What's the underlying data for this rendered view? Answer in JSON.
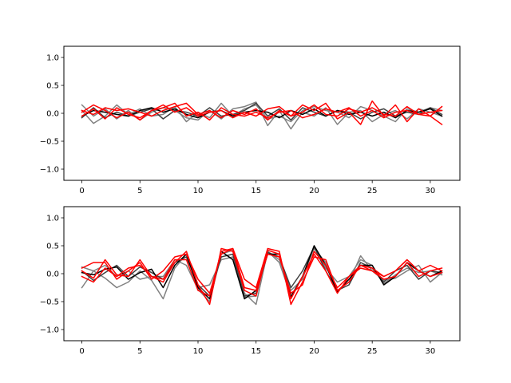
{
  "chart_data": [
    {
      "type": "line",
      "xlim": [
        -1.55,
        32.55
      ],
      "ylim": [
        -1.2,
        1.2
      ],
      "x": [
        0,
        1,
        2,
        3,
        4,
        5,
        6,
        7,
        8,
        9,
        10,
        11,
        12,
        13,
        14,
        15,
        16,
        17,
        18,
        19,
        20,
        21,
        22,
        23,
        24,
        25,
        26,
        27,
        28,
        29,
        30,
        31
      ],
      "xticks": [
        "0",
        "5",
        "10",
        "15",
        "20",
        "25",
        "30"
      ],
      "xtick_values": [
        0,
        5,
        10,
        15,
        20,
        25,
        30
      ],
      "yticks": [
        "−1.0",
        "−0.5",
        "0.0",
        "0.5",
        "1.0"
      ],
      "ytick_values": [
        -1.0,
        -0.5,
        0.0,
        0.5,
        1.0
      ],
      "grid": false,
      "series": [
        {
          "color": "#808080",
          "values": [
            0.15,
            -0.05,
            0.08,
            -0.1,
            0.05,
            -0.12,
            0.02,
            0.1,
            0.05,
            -0.08,
            -0.12,
            0.05,
            -0.1,
            0.08,
            0.12,
            0.2,
            -0.22,
            0.05,
            -0.28,
            0.02,
            -0.05,
            0.1,
            -0.2,
            0.02,
            0.05,
            -0.15,
            -0.02,
            0.05,
            -0.1,
            0.08,
            0.02,
            -0.05
          ]
        },
        {
          "color": "#808080",
          "values": [
            0.05,
            -0.18,
            -0.05,
            0.15,
            -0.02,
            0.08,
            -0.05,
            -0.02,
            0.12,
            -0.15,
            0.02,
            -0.08,
            0.18,
            -0.05,
            0.08,
            0.15,
            -0.1,
            -0.05,
            -0.15,
            0.05,
            0.12,
            0.05,
            0.02,
            -0.08,
            0.12,
            0.05,
            -0.05,
            -0.15,
            0.08,
            0.02,
            0.1,
            0.05
          ]
        },
        {
          "color": "#404040",
          "values": [
            -0.08,
            0.1,
            -0.08,
            0.02,
            -0.05,
            0.02,
            0.08,
            -0.1,
            0.05,
            0.02,
            -0.05,
            0.1,
            -0.05,
            -0.02,
            0.05,
            0.18,
            -0.05,
            0.08,
            -0.12,
            0.1,
            0.02,
            -0.05,
            0.05,
            0.02,
            -0.1,
            0.02,
            0.08,
            -0.05,
            0.02,
            -0.02,
            0.1,
            -0.02
          ]
        },
        {
          "color": "#000000",
          "values": [
            -0.05,
            0.05,
            0.02,
            -0.02,
            -0.05,
            0.05,
            0.1,
            0.02,
            0.08,
            -0.02,
            -0.08,
            0.02,
            0.05,
            -0.05,
            0.02,
            0.05,
            0.02,
            -0.08,
            0.05,
            -0.02,
            0.08,
            -0.05,
            0.05,
            -0.02,
            0.02,
            -0.05,
            0.02,
            -0.08,
            0.05,
            0.02,
            0.08,
            -0.05
          ]
        },
        {
          "color": "#ff0000",
          "values": [
            0.02,
            0.15,
            0.05,
            -0.08,
            0.02,
            -0.12,
            0.05,
            0.15,
            0.02,
            0.1,
            -0.05,
            0.02,
            0.05,
            -0.08,
            0.02,
            -0.05,
            0.08,
            0.12,
            -0.05,
            0.15,
            0.05,
            0.18,
            -0.1,
            0.02,
            -0.2,
            0.22,
            -0.05,
            0.15,
            -0.15,
            0.08,
            -0.05,
            0.12
          ]
        },
        {
          "color": "#ff0000",
          "values": [
            -0.05,
            0.08,
            -0.1,
            0.1,
            -0.02,
            -0.08,
            0.05,
            0.1,
            0.18,
            -0.05,
            0.02,
            -0.12,
            0.1,
            -0.02,
            -0.05,
            0.02,
            -0.08,
            0.02,
            0.05,
            -0.08,
            -0.02,
            0.08,
            0.02,
            0.1,
            -0.05,
            0.05,
            -0.08,
            0.02,
            0.05,
            -0.02,
            -0.05,
            -0.2
          ]
        },
        {
          "color": "#ff0000",
          "values": [
            0.05,
            -0.02,
            0.1,
            0.05,
            0.08,
            0.02,
            -0.05,
            0.05,
            0.12,
            0.18,
            -0.02,
            0.05,
            -0.08,
            0.05,
            -0.02,
            0.08,
            -0.12,
            0.05,
            -0.05,
            0.02,
            0.15,
            -0.02,
            -0.05,
            0.08,
            0.02,
            0.1,
            -0.02,
            -0.05,
            0.12,
            -0.02,
            0.02,
            0.05
          ]
        }
      ]
    },
    {
      "type": "line",
      "xlim": [
        -1.55,
        32.55
      ],
      "ylim": [
        -1.2,
        1.2
      ],
      "x": [
        0,
        1,
        2,
        3,
        4,
        5,
        6,
        7,
        8,
        9,
        10,
        11,
        12,
        13,
        14,
        15,
        16,
        17,
        18,
        19,
        20,
        21,
        22,
        23,
        24,
        25,
        26,
        27,
        28,
        29,
        30,
        31
      ],
      "xticks": [
        "0",
        "5",
        "10",
        "15",
        "20",
        "25",
        "30"
      ],
      "xtick_values": [
        0,
        5,
        10,
        15,
        20,
        25,
        30
      ],
      "yticks": [
        "−1.0",
        "−0.5",
        "0.0",
        "0.5",
        "1.0"
      ],
      "ytick_values": [
        -1.0,
        -0.5,
        0.0,
        0.5,
        1.0
      ],
      "grid": false,
      "series": [
        {
          "color": "#808080",
          "values": [
            -0.25,
            0.05,
            -0.08,
            -0.25,
            -0.15,
            0.05,
            -0.12,
            -0.45,
            0.1,
            0.35,
            -0.25,
            -0.2,
            0.25,
            0.3,
            -0.35,
            -0.55,
            0.4,
            0.2,
            -0.4,
            -0.05,
            0.45,
            0.2,
            -0.3,
            -0.15,
            0.32,
            0.05,
            -0.12,
            -0.08,
            0.05,
            0.15,
            -0.15,
            0.02
          ]
        },
        {
          "color": "#808080",
          "values": [
            0.12,
            0.05,
            0.15,
            -0.05,
            0.05,
            -0.1,
            -0.05,
            -0.05,
            0.25,
            0.15,
            -0.28,
            -0.5,
            0.35,
            0.42,
            -0.42,
            -0.4,
            0.4,
            0.25,
            -0.3,
            -0.1,
            0.5,
            0.1,
            -0.15,
            -0.05,
            0.25,
            0.15,
            -0.18,
            -0.02,
            0.1,
            0.02,
            0.05,
            -0.02
          ]
        },
        {
          "color": "#404040",
          "values": [
            0.05,
            -0.12,
            0.02,
            0.15,
            -0.05,
            0.12,
            0.02,
            -0.1,
            0.2,
            0.3,
            -0.2,
            -0.4,
            0.3,
            0.35,
            -0.4,
            -0.35,
            0.38,
            0.3,
            -0.25,
            0.05,
            0.48,
            0.05,
            -0.3,
            -0.2,
            0.2,
            0.1,
            -0.15,
            0.05,
            0.15,
            -0.1,
            0.05,
            0.02
          ]
        },
        {
          "color": "#000000",
          "values": [
            0.02,
            -0.02,
            0.08,
            0.12,
            -0.1,
            0.02,
            0.08,
            -0.25,
            0.15,
            0.35,
            -0.25,
            -0.45,
            0.4,
            0.25,
            -0.45,
            -0.3,
            0.35,
            0.35,
            -0.42,
            -0.05,
            0.5,
            0.15,
            -0.32,
            -0.1,
            0.15,
            0.15,
            -0.2,
            -0.05,
            0.2,
            0.05,
            -0.05,
            0.05
          ]
        },
        {
          "color": "#ff0000",
          "values": [
            0.1,
            0.2,
            0.2,
            -0.1,
            0.05,
            0.2,
            -0.1,
            0.05,
            0.3,
            0.35,
            -0.1,
            -0.35,
            0.35,
            0.45,
            -0.1,
            -0.25,
            0.45,
            0.4,
            -0.55,
            -0.15,
            0.3,
            0.25,
            -0.3,
            -0.15,
            0.15,
            0.05,
            -0.05,
            0.05,
            0.25,
            0.05,
            0.15,
            0.05
          ]
        },
        {
          "color": "#ff0000",
          "values": [
            -0.05,
            -0.15,
            0.1,
            -0.05,
            0.1,
            0.15,
            -0.05,
            -0.1,
            0.25,
            0.25,
            -0.3,
            -0.4,
            0.4,
            0.45,
            -0.25,
            -0.3,
            0.35,
            0.3,
            -0.35,
            -0.2,
            0.4,
            0.15,
            -0.25,
            -0.05,
            0.1,
            0.05,
            -0.1,
            -0.05,
            0.2,
            -0.05,
            0.05,
            0.1
          ]
        },
        {
          "color": "#ff0000",
          "values": [
            0.05,
            -0.08,
            0.25,
            -0.02,
            -0.05,
            0.25,
            -0.05,
            -0.15,
            0.2,
            0.4,
            -0.2,
            -0.55,
            0.45,
            0.4,
            -0.3,
            -0.4,
            0.42,
            0.35,
            -0.45,
            -0.05,
            0.35,
            0.05,
            -0.35,
            -0.05,
            0.15,
            0.1,
            -0.05,
            0.05,
            0.25,
            0.05,
            -0.05,
            0.02
          ]
        }
      ]
    }
  ]
}
